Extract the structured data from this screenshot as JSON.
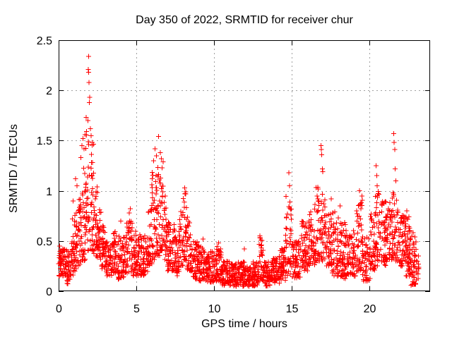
{
  "figure": {
    "background": "#ffffff"
  },
  "chart_data": {
    "type": "scatter",
    "title": "Day 350 of 2022, SRMTID for receiver chur",
    "xlabel": "GPS time / hours",
    "ylabel": "SRMTID / TECUs",
    "xlim": [
      0,
      23.9
    ],
    "ylim": [
      0,
      2.5
    ],
    "xticks": [
      0,
      5,
      10,
      15,
      20
    ],
    "yticks": [
      0,
      0.5,
      1,
      1.5,
      2,
      2.5
    ],
    "grid": true,
    "legend_position": "none",
    "marker": {
      "symbol": "plus",
      "size": 7,
      "color": "#ff0000"
    },
    "grid_color": "#a0a0a0",
    "axis_color": "#000000",
    "series_name": "SRMTID",
    "seed": 42,
    "point_count_estimate": 2700,
    "density_bins": [
      [
        0.0,
        0.5,
        0.15,
        0.45,
        60
      ],
      [
        0.5,
        0.75,
        0.07,
        0.4,
        30
      ],
      [
        0.75,
        1.0,
        0.15,
        0.55,
        30
      ],
      [
        1.0,
        1.25,
        0.2,
        0.8,
        32
      ],
      [
        1.25,
        1.5,
        0.25,
        0.95,
        32
      ],
      [
        1.5,
        1.75,
        0.3,
        1.3,
        34
      ],
      [
        1.75,
        2.0,
        0.4,
        1.6,
        34
      ],
      [
        2.0,
        2.25,
        0.4,
        1.5,
        34
      ],
      [
        2.25,
        2.5,
        0.35,
        1.1,
        32
      ],
      [
        2.5,
        2.75,
        0.3,
        0.9,
        30
      ],
      [
        2.75,
        3.0,
        0.22,
        0.65,
        30
      ],
      [
        3.0,
        3.5,
        0.15,
        0.5,
        60
      ],
      [
        3.5,
        3.75,
        0.18,
        0.6,
        30
      ],
      [
        3.75,
        4.25,
        0.12,
        0.55,
        55
      ],
      [
        4.25,
        4.75,
        0.18,
        0.7,
        55
      ],
      [
        4.75,
        5.25,
        0.15,
        0.6,
        55
      ],
      [
        5.25,
        5.75,
        0.15,
        0.55,
        55
      ],
      [
        5.75,
        6.0,
        0.25,
        0.85,
        30
      ],
      [
        6.0,
        6.25,
        0.3,
        1.2,
        32
      ],
      [
        6.25,
        6.5,
        0.35,
        1.25,
        32
      ],
      [
        6.5,
        6.75,
        0.4,
        1.3,
        32
      ],
      [
        6.75,
        7.0,
        0.3,
        1.0,
        30
      ],
      [
        7.0,
        7.5,
        0.2,
        0.7,
        58
      ],
      [
        7.5,
        7.75,
        0.15,
        0.55,
        30
      ],
      [
        7.75,
        8.0,
        0.25,
        0.8,
        30
      ],
      [
        8.0,
        8.25,
        0.3,
        1.0,
        32
      ],
      [
        8.25,
        8.5,
        0.2,
        0.75,
        30
      ],
      [
        8.5,
        9.0,
        0.12,
        0.5,
        58
      ],
      [
        9.0,
        9.5,
        0.1,
        0.45,
        58
      ],
      [
        9.5,
        10.0,
        0.08,
        0.4,
        58
      ],
      [
        10.0,
        10.5,
        0.1,
        0.45,
        58
      ],
      [
        10.5,
        11.0,
        0.06,
        0.3,
        58
      ],
      [
        11.0,
        11.5,
        0.05,
        0.28,
        58
      ],
      [
        11.5,
        12.0,
        0.05,
        0.3,
        58
      ],
      [
        12.0,
        12.5,
        0.04,
        0.25,
        58
      ],
      [
        12.5,
        12.9,
        0.05,
        0.3,
        48
      ],
      [
        12.9,
        13.15,
        0.1,
        0.55,
        26
      ],
      [
        13.15,
        13.75,
        0.05,
        0.3,
        62
      ],
      [
        13.75,
        14.25,
        0.08,
        0.35,
        56
      ],
      [
        14.25,
        14.6,
        0.1,
        0.45,
        40
      ],
      [
        14.6,
        15.0,
        0.15,
        0.95,
        42
      ],
      [
        15.0,
        15.6,
        0.12,
        0.5,
        62
      ],
      [
        15.6,
        16.1,
        0.2,
        0.7,
        56
      ],
      [
        16.1,
        16.55,
        0.25,
        0.9,
        50
      ],
      [
        16.55,
        17.15,
        0.3,
        1.05,
        62
      ],
      [
        17.15,
        17.6,
        0.25,
        0.8,
        50
      ],
      [
        17.6,
        18.0,
        0.15,
        0.8,
        45
      ],
      [
        18.0,
        18.45,
        0.12,
        0.7,
        50
      ],
      [
        18.45,
        19.1,
        0.15,
        0.62,
        65
      ],
      [
        19.1,
        19.55,
        0.2,
        0.95,
        50
      ],
      [
        19.55,
        20.05,
        0.1,
        0.55,
        52
      ],
      [
        20.05,
        20.35,
        0.2,
        0.8,
        35
      ],
      [
        20.35,
        20.65,
        0.25,
        1.0,
        35
      ],
      [
        20.65,
        21.05,
        0.25,
        0.9,
        45
      ],
      [
        21.05,
        21.45,
        0.3,
        0.9,
        45
      ],
      [
        21.45,
        21.85,
        0.3,
        1.0,
        45
      ],
      [
        21.85,
        22.3,
        0.25,
        0.8,
        50
      ],
      [
        22.3,
        22.65,
        0.15,
        0.75,
        55
      ],
      [
        22.65,
        23.0,
        0.06,
        0.6,
        45
      ],
      [
        23.0,
        23.2,
        0.1,
        0.45,
        12
      ]
    ],
    "peak_points": [
      [
        0.88,
        0.72
      ],
      [
        0.93,
        0.9
      ],
      [
        1.1,
        1.12
      ],
      [
        1.18,
        1.05
      ],
      [
        1.42,
        1.33
      ],
      [
        1.5,
        1.45
      ],
      [
        1.57,
        1.52
      ],
      [
        1.63,
        1.42
      ],
      [
        1.7,
        1.56
      ],
      [
        1.78,
        1.73
      ],
      [
        1.88,
        1.7
      ],
      [
        1.9,
        2.21
      ],
      [
        1.92,
        2.18
      ],
      [
        1.94,
        2.34
      ],
      [
        1.96,
        2.08
      ],
      [
        2.0,
        1.93
      ],
      [
        1.98,
        1.88
      ],
      [
        2.04,
        1.62
      ],
      [
        2.08,
        1.55
      ],
      [
        2.15,
        1.48
      ],
      [
        4.0,
        0.7
      ],
      [
        4.55,
        0.78
      ],
      [
        4.62,
        0.82
      ],
      [
        6.12,
        1.3
      ],
      [
        6.2,
        1.42
      ],
      [
        6.3,
        1.35
      ],
      [
        6.42,
        1.54
      ],
      [
        6.55,
        1.38
      ],
      [
        6.6,
        1.32
      ],
      [
        8.1,
        1.03
      ],
      [
        8.14,
        0.97
      ],
      [
        9.3,
        0.52
      ],
      [
        10.3,
        0.48
      ],
      [
        11.95,
        0.42
      ],
      [
        12.95,
        0.55
      ],
      [
        13.02,
        0.51
      ],
      [
        14.82,
        1.18
      ],
      [
        14.86,
        1.05
      ],
      [
        16.88,
        1.45
      ],
      [
        16.9,
        1.41
      ],
      [
        16.93,
        1.36
      ],
      [
        16.96,
        1.22
      ],
      [
        17.0,
        1.19
      ],
      [
        17.55,
        0.92
      ],
      [
        18.1,
        0.85
      ],
      [
        19.35,
        1.0
      ],
      [
        20.42,
        1.25
      ],
      [
        20.46,
        1.15
      ],
      [
        20.5,
        1.05
      ],
      [
        21.55,
        1.57
      ],
      [
        21.58,
        1.48
      ],
      [
        21.62,
        1.41
      ],
      [
        21.66,
        1.22
      ],
      [
        21.7,
        1.1
      ],
      [
        22.4,
        0.8
      ]
    ]
  }
}
